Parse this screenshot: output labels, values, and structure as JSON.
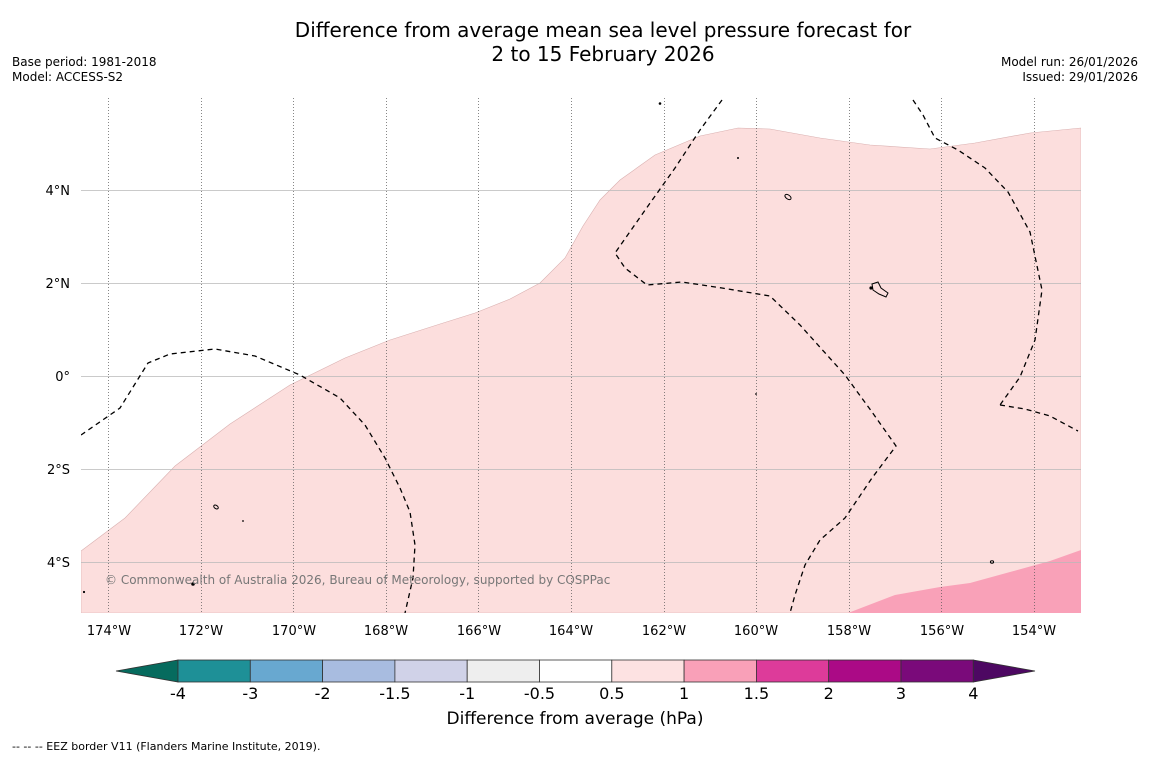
{
  "title": {
    "line1": "Difference from average mean sea level pressure forecast for",
    "line2": "2 to 15 February 2026"
  },
  "meta_left": {
    "base_period": "Base period: 1981-2018",
    "model": "Model: ACCESS-S2"
  },
  "meta_right": {
    "model_run": "Model run: 26/01/2026",
    "issued": "Issued: 29/01/2026"
  },
  "map": {
    "copyright": "© Commonwealth of Australia 2026, Bureau of Meteorology, supported by COSPPac",
    "lon_labels": [
      "174°W",
      "172°W",
      "170°W",
      "168°W",
      "166°W",
      "164°W",
      "162°W",
      "160°W",
      "158°W",
      "156°W",
      "154°W"
    ],
    "lat_labels": [
      "4°N",
      "2°N",
      "0°",
      "2°S",
      "4°S"
    ],
    "fill_colors": {
      "anomaly_0_5_to_1": "#fcdedd",
      "anomaly_1_to_1_5": "#f9a1b8",
      "coast": "#000000",
      "eez": "#000000"
    }
  },
  "colorbar": {
    "title": "Difference from average (hPa)",
    "labels": [
      "-4",
      "-3",
      "-2",
      "-1.5",
      "-1",
      "-0.5",
      "0.5",
      "1",
      "1.5",
      "2",
      "3",
      "4"
    ],
    "colors": [
      "#066b5e",
      "#1e9097",
      "#68a8d0",
      "#a8bce0",
      "#d0d2e8",
      "#eeeeee",
      "#ffffff",
      "#fde2e2",
      "#f9a0b8",
      "#dd3b9a",
      "#ab0a86",
      "#7a0a7a",
      "#4d0862"
    ]
  },
  "footnote": "--  --  -- EEZ border V11 (Flanders Marine Institute, 2019)."
}
